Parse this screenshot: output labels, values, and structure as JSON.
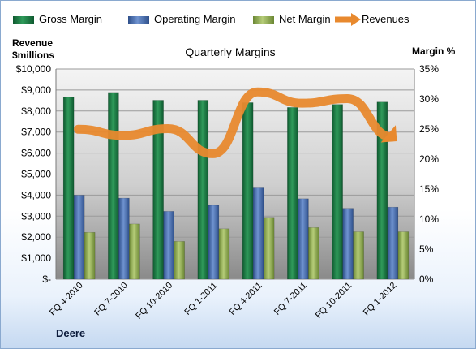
{
  "chart_data": {
    "type": "bar",
    "title": "Quarterly Margins",
    "company": "Deere",
    "y_left_label": [
      "Revenue",
      "$millions"
    ],
    "y_right_label": "Margin %",
    "categories": [
      "FQ 4-2010",
      "FQ 7-2010",
      "FQ 10-2010",
      "FQ 1-2011",
      "FQ 4-2011",
      "FQ 7-2011",
      "FQ 10-2011",
      "FQ 1-2012"
    ],
    "series": [
      {
        "name": "Gross Margin",
        "axis": "right",
        "color": "#1e7b45",
        "values": [
          30.3,
          31.1,
          29.8,
          29.8,
          29.4,
          28.6,
          29.1,
          29.5
        ]
      },
      {
        "name": "Operating Margin",
        "axis": "right",
        "color": "#4a6fb0",
        "values": [
          14.0,
          13.5,
          11.3,
          12.3,
          15.2,
          13.4,
          11.8,
          12.0
        ]
      },
      {
        "name": "Net Margin",
        "axis": "right",
        "color": "#93ad54",
        "values": [
          7.8,
          9.2,
          6.3,
          8.4,
          10.3,
          8.6,
          7.9,
          7.9
        ]
      }
    ],
    "line_series": {
      "name": "Revenues",
      "axis": "left",
      "color": "#e8892e",
      "values": [
        7131,
        6841,
        7160,
        5969,
        8910,
        8372,
        8592,
        6763
      ]
    },
    "y_left": {
      "min": 0,
      "max": 10000,
      "step": 1000,
      "ticks": [
        "$-",
        "$1,000",
        "$2,000",
        "$3,000",
        "$4,000",
        "$5,000",
        "$6,000",
        "$7,000",
        "$8,000",
        "$9,000",
        "$10,000"
      ]
    },
    "y_right": {
      "min": 0,
      "max": 35,
      "step": 5,
      "ticks": [
        "0%",
        "5%",
        "10%",
        "15%",
        "20%",
        "25%",
        "30%",
        "35%"
      ]
    },
    "grid": true,
    "legend_position": "top"
  }
}
